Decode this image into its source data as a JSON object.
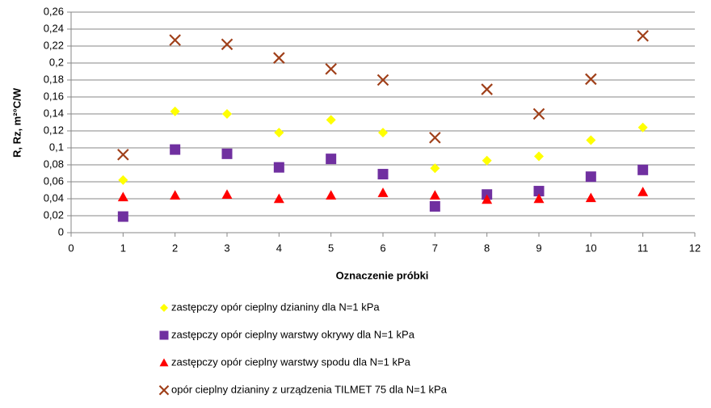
{
  "chart_data": {
    "type": "scatter",
    "x_label": "Oznaczenie próbki",
    "y_label": "R, Rz, m²°C/W",
    "xlim": [
      0,
      12
    ],
    "xticks": [
      0,
      1,
      2,
      3,
      4,
      5,
      6,
      7,
      8,
      9,
      10,
      11,
      12
    ],
    "ylim": [
      0,
      0.26
    ],
    "yticks": [
      0,
      {
        "value": 0.02,
        "label": "0,02"
      },
      {
        "value": 0.04,
        "label": "0,04"
      },
      {
        "value": 0.06,
        "label": "0,06"
      },
      {
        "value": 0.08,
        "label": "0,08"
      },
      {
        "value": 0.1,
        "label": "0,1"
      },
      {
        "value": 0.12,
        "label": "0,12"
      },
      {
        "value": 0.14,
        "label": "0,14"
      },
      {
        "value": 0.16,
        "label": "0,16"
      },
      {
        "value": 0.18,
        "label": "0,18"
      },
      {
        "value": 0.2,
        "label": "0,2"
      },
      {
        "value": 0.22,
        "label": "0,22"
      },
      {
        "value": 0.24,
        "label": "0,24"
      },
      {
        "value": 0.26,
        "label": "0,26"
      }
    ],
    "grid": true,
    "x": [
      1,
      2,
      3,
      4,
      5,
      6,
      7,
      8,
      9,
      10,
      11
    ],
    "series": [
      {
        "name": "zastępczy opór cieplny dzianiny dla N=1 kPa",
        "color": "#ffff00",
        "marker": "diamond",
        "values": [
          0.062,
          0.143,
          0.14,
          0.118,
          0.133,
          0.118,
          0.076,
          0.085,
          0.09,
          0.109,
          0.124
        ]
      },
      {
        "name": "zastępczy opór cieplny warstwy okrywy dla N=1 kPa",
        "color": "#7030a0",
        "marker": "square",
        "values": [
          0.019,
          0.098,
          0.093,
          0.077,
          0.087,
          0.069,
          0.031,
          0.045,
          0.049,
          0.066,
          0.074
        ]
      },
      {
        "name": "zastępczy opór cieplny warstwy spodu dla N=1 kPa",
        "color": "#ff0000",
        "marker": "triangle",
        "values": [
          0.042,
          0.044,
          0.045,
          0.04,
          0.044,
          0.047,
          0.044,
          0.039,
          0.04,
          0.041,
          0.048
        ]
      },
      {
        "name": "opór cieplny dzianiny z urządzenia TILMET 75 dla N=1 kPa",
        "color": "#a0401a",
        "marker": "cross",
        "values": [
          0.092,
          0.227,
          0.222,
          0.206,
          0.193,
          0.18,
          0.112,
          0.169,
          0.14,
          0.181,
          0.232
        ]
      }
    ]
  }
}
